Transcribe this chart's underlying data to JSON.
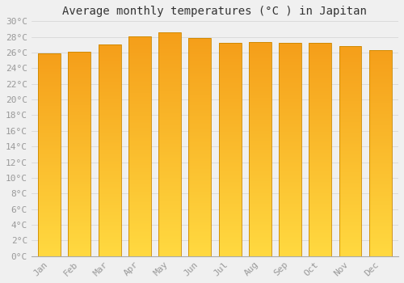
{
  "title": "Average monthly temperatures (°C ) in Japitan",
  "months": [
    "Jan",
    "Feb",
    "Mar",
    "Apr",
    "May",
    "Jun",
    "Jul",
    "Aug",
    "Sep",
    "Oct",
    "Nov",
    "Dec"
  ],
  "temperatures": [
    25.9,
    26.1,
    27.0,
    28.1,
    28.6,
    27.9,
    27.2,
    27.3,
    27.2,
    27.2,
    26.8,
    26.3
  ],
  "bar_color_top": "#F5A623",
  "bar_color_bottom": "#FFD040",
  "background_color": "#f0f0f0",
  "grid_color": "#d8d8d8",
  "ylim": [
    0,
    30
  ],
  "ytick_step": 2,
  "title_fontsize": 10,
  "tick_fontsize": 8,
  "tick_color": "#999999",
  "bar_width": 0.75
}
